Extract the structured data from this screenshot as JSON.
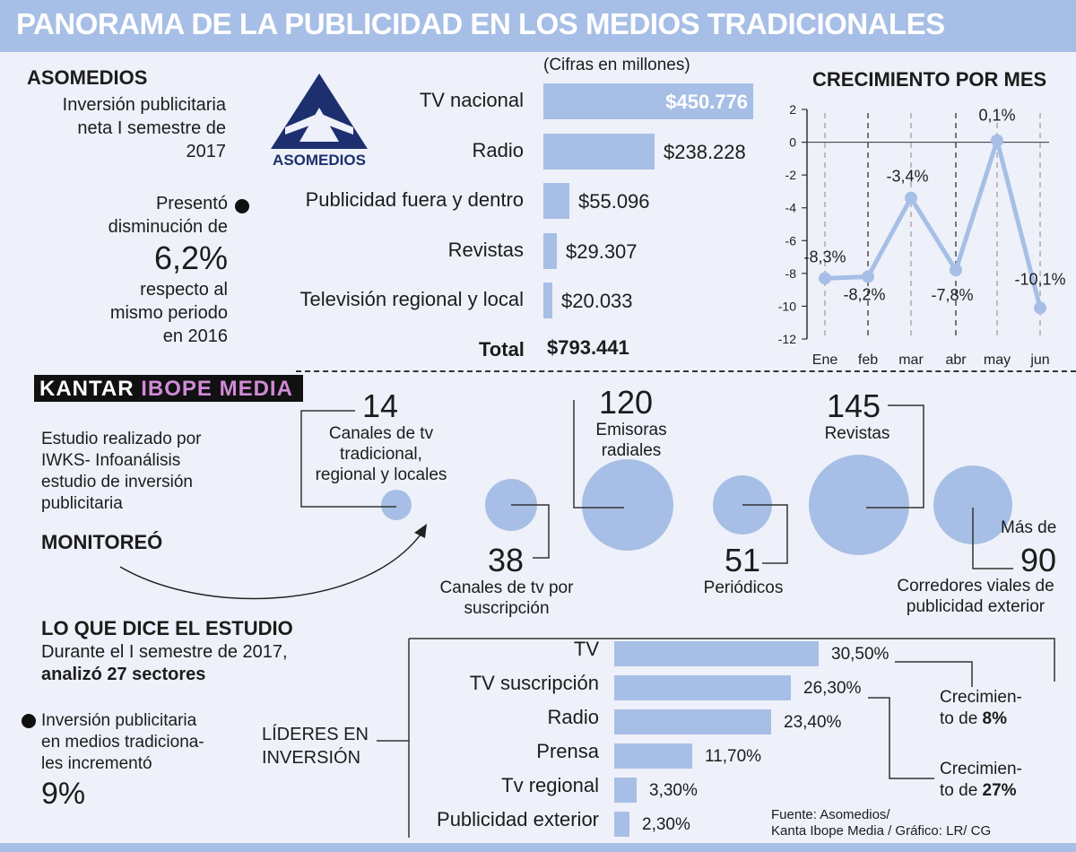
{
  "header": {
    "title": "PANORAMA DE LA PUBLICIDAD EN LOS MEDIOS TRADICIONALES"
  },
  "asomedios": {
    "heading": "ASOMEDIOS",
    "desc_1": "Inversión publicitaria",
    "desc_2": "neta I semestre de",
    "desc_3": "2017",
    "logo_text": "ASOMEDIOS",
    "dec_1": "Presentó",
    "dec_2": "disminución de",
    "dec_value": "6,2%",
    "dec_3": "respecto al",
    "dec_4": "mismo periodo",
    "dec_5": "en 2016"
  },
  "kantar": {
    "logo_1": "KANTAR",
    "logo_2": "IBOPE MEDIA",
    "study_1": "Estudio realizado por",
    "study_2": "IWKS- Infoanálisis",
    "study_3": "estudio de inversión",
    "study_4": "publicitaria",
    "monitoreo": "MONITOREÓ"
  },
  "estudio": {
    "heading": "LO QUE DICE EL ESTUDIO",
    "line_1": "Durante el I semestre de 2017,",
    "line_2": "analizó 27 sectores",
    "inv_1": "Inversión publicitaria",
    "inv_2": "en medios tradiciona-",
    "inv_3": "les incrementó",
    "inv_value": "9%",
    "lideres_1": "LÍDERES EN",
    "lideres_2": "INVERSIÓN",
    "crec1_1": "Crecimien-",
    "crec1_2": "to de ",
    "crec1_v": "8%",
    "crec2_1": "Crecimien-",
    "crec2_2": "to de ",
    "crec2_v": "27%"
  },
  "source": {
    "line_1": "Fuente: Asomedios/",
    "line_2": "Kanta Ibope Media / Gráfico: LR/ CG"
  },
  "chart_data": [
    {
      "type": "bar",
      "subtitle": "(Cifras en millones)",
      "categories": [
        "TV nacional",
        "Radio",
        "Publicidad fuera y dentro",
        "Revistas",
        "Televisión regional y local"
      ],
      "values": [
        450776,
        238228,
        55096,
        29307,
        20033
      ],
      "value_labels": [
        "$450.776",
        "$238.228",
        "$55.096",
        "$29.307",
        "$20.033"
      ],
      "total_label": "Total",
      "total_value": "$793.441"
    },
    {
      "type": "line",
      "title": "CRECIMIENTO POR MES",
      "x": [
        "Ene",
        "feb",
        "mar",
        "abr",
        "may",
        "jun"
      ],
      "y": [
        -8.3,
        -8.2,
        -3.4,
        -7.8,
        0.1,
        -10.1
      ],
      "point_labels": [
        "-8,3%",
        "-8,2%",
        "-3,4%",
        "-7,8%",
        "0,1%",
        "-10,1%"
      ],
      "yticks": [
        2,
        0,
        -2,
        -4,
        -6,
        -8,
        -10,
        -12
      ],
      "ylim": [
        -12,
        2
      ]
    },
    {
      "type": "scatter",
      "subtitle": "MONITOREÓ",
      "items": [
        {
          "value": 14,
          "label_1": "Canales de tv",
          "label_2": "tradicional,",
          "label_3": "regional y locales"
        },
        {
          "value": 38,
          "label_1": "Canales de tv por",
          "label_2": "suscripción"
        },
        {
          "value": 120,
          "label_1": "Emisoras",
          "label_2": "radiales"
        },
        {
          "value": 51,
          "label_1": "Periódicos"
        },
        {
          "value": 145,
          "label_1": "Revistas"
        },
        {
          "value": 90,
          "prefix": "Más de",
          "label_1": "Corredores viales de",
          "label_2": "publicidad exterior"
        }
      ]
    },
    {
      "type": "bar",
      "categories": [
        "TV",
        "TV suscripción",
        "Radio",
        "Prensa",
        "Tv regional",
        "Publicidad exterior"
      ],
      "values": [
        30.5,
        26.3,
        23.4,
        11.7,
        3.3,
        2.3
      ],
      "value_labels": [
        "30,50%",
        "26,30%",
        "23,40%",
        "11,70%",
        "3,30%",
        "2,30%"
      ]
    }
  ]
}
